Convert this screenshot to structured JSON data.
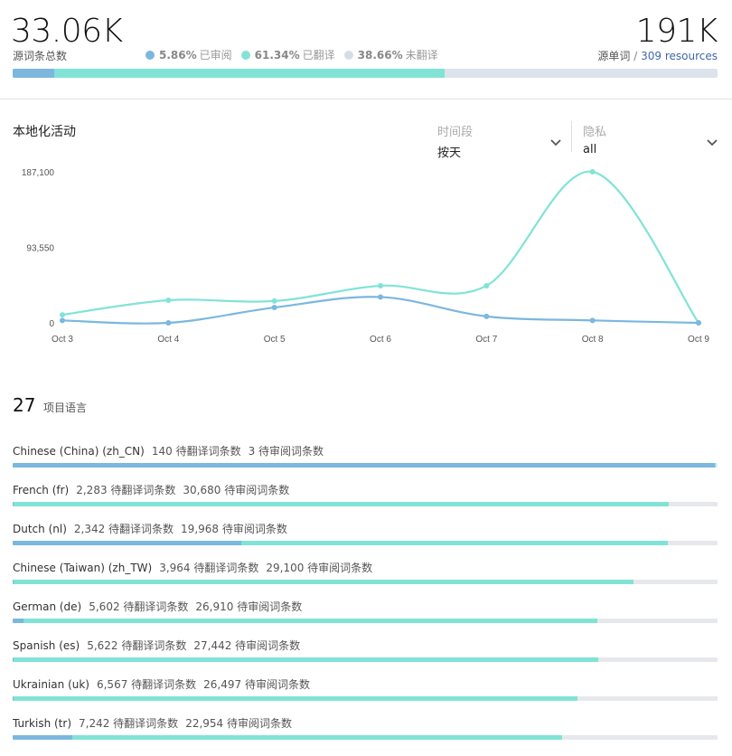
{
  "header": {
    "source_entries_value": "33.06K",
    "source_entries_label": "源词条总数",
    "source_words_value": "191K",
    "source_words_label": "源单词",
    "resources_sep": "/",
    "resources_link": "309 resources",
    "legend": [
      {
        "pct": "5.86%",
        "label": "已审阅",
        "color": "#7bb7df"
      },
      {
        "pct": "61.34%",
        "label": "已翻译",
        "color": "#81e3d6"
      },
      {
        "pct": "38.66%",
        "label": "未翻译",
        "color": "#d6dde6"
      }
    ],
    "progress": {
      "reviewed": 5.86,
      "translated": 61.34,
      "untranslated": 38.66
    }
  },
  "activity": {
    "title": "本地化活动",
    "period_label": "时间段",
    "period_value": "按天",
    "privacy_label": "隐私",
    "privacy_value": "all"
  },
  "chart_data": {
    "type": "line",
    "x": [
      "Oct 3",
      "Oct 4",
      "Oct 5",
      "Oct 6",
      "Oct 7",
      "Oct 8",
      "Oct 9"
    ],
    "ytick_labels": [
      "187,100",
      "93,550",
      "0"
    ],
    "yticks": [
      187100,
      93550,
      0
    ],
    "ylim": [
      0,
      187100
    ],
    "series": [
      {
        "color": "#81e3d6",
        "values": [
          10000,
          28000,
          27000,
          46000,
          46000,
          187100,
          0
        ]
      },
      {
        "color": "#7bb7df",
        "values": [
          3000,
          0,
          19000,
          32000,
          8000,
          3000,
          0
        ]
      }
    ],
    "grid": false
  },
  "languages": {
    "count": "27",
    "count_label": "项目语言",
    "items": [
      {
        "name": "Chinese (China) (zh_CN)",
        "to_translate": "140 待翻译词条数",
        "to_review": "3 待审阅词条数",
        "reviewed": 99.6,
        "translated": 0.2
      },
      {
        "name": "French (fr)",
        "to_translate": "2,283 待翻译词条数",
        "to_review": "30,680 待审阅词条数",
        "reviewed": 0.1,
        "translated": 93.0
      },
      {
        "name": "Dutch (nl)",
        "to_translate": "2,342 待翻译词条数",
        "to_review": "19,968 待审阅词条数",
        "reviewed": 32.4,
        "translated": 60.5
      },
      {
        "name": "Chinese (Taiwan) (zh_TW)",
        "to_translate": "3,964 待翻译词条数",
        "to_review": "29,100 待审阅词条数",
        "reviewed": 0.1,
        "translated": 88.0
      },
      {
        "name": "German (de)",
        "to_translate": "5,602 待翻译词条数",
        "to_review": "26,910 待审阅词条数",
        "reviewed": 1.5,
        "translated": 81.5
      },
      {
        "name": "Spanish (es)",
        "to_translate": "5,622 待翻译词条数",
        "to_review": "27,442 待审阅词条数",
        "reviewed": 0.1,
        "translated": 83.0
      },
      {
        "name": "Ukrainian (uk)",
        "to_translate": "6,567 待翻译词条数",
        "to_review": "26,497 待审阅词条数",
        "reviewed": 0.1,
        "translated": 80.0
      },
      {
        "name": "Turkish (tr)",
        "to_translate": "7,242 待翻译词条数",
        "to_review": "22,954 待审阅词条数",
        "reviewed": 8.5,
        "translated": 69.4
      }
    ]
  }
}
